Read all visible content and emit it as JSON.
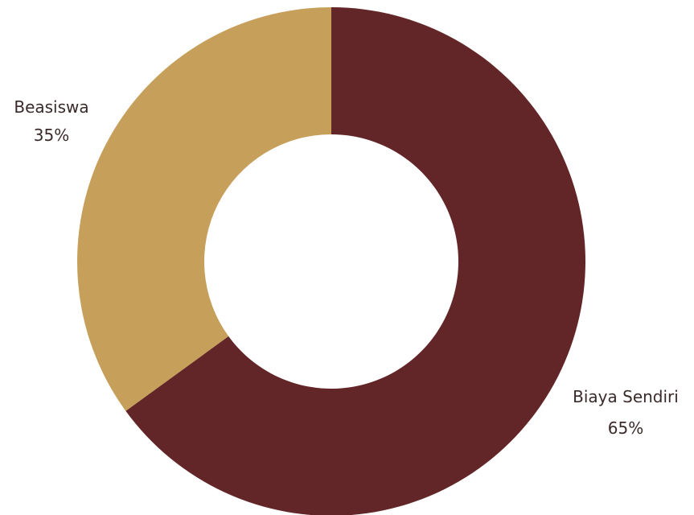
{
  "chart_data": {
    "type": "pie",
    "donut": true,
    "slices": [
      {
        "label": "Biaya Sendiri",
        "value": 65,
        "value_label": "65%",
        "color": "#632628"
      },
      {
        "label": "Beasiswa",
        "value": 35,
        "value_label": "35%",
        "color": "#c6a05b"
      }
    ],
    "start": "top",
    "direction": "clockwise",
    "legend": "none"
  }
}
